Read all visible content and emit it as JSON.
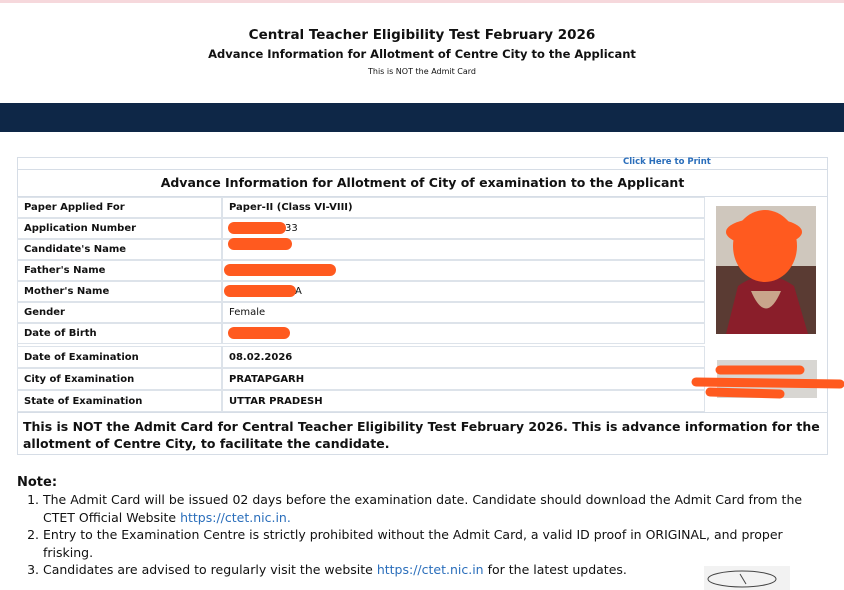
{
  "header": {
    "title": "Central Teacher Eligibility Test February 2026",
    "subtitle": "Advance Information for Allotment of Centre City to the Applicant",
    "note": "This is NOT the Admit Card"
  },
  "print_link": "Click Here to Print",
  "table": {
    "heading": "Advance Information for Allotment of City of examination to the Applicant",
    "rows": [
      [
        "Paper Applied For",
        "Paper-II (Class VI-VIII)"
      ],
      [
        "Application Number",
        "33"
      ],
      [
        "Candidate's Name"
      ],
      [
        "Father's Name"
      ],
      [
        "Mother's Name",
        "A"
      ],
      [
        "Gender",
        "Female"
      ],
      [
        "Date of Birth"
      ]
    ],
    "exam_rows": [
      [
        "Date of Examination",
        "08.02.2026"
      ],
      [
        "City of Examination",
        "PRATAPGARH"
      ],
      [
        "State of Examination",
        "UTTAR PRADESH"
      ]
    ],
    "notice": "This is NOT the Admit Card for Central Teacher Eligibility Test February 2026. This is advance information for the allotment of Centre City, to facilitate the candidate."
  },
  "notes": {
    "heading": "Note:",
    "items": [
      {
        "text": "The Admit Card will be issued 02 days before the examination date. Candidate should download the Admit Card from the CTET Official Website ",
        "link": "https://ctet.nic.in."
      },
      {
        "text": "Entry to the Examination Centre is strictly prohibited without the Admit Card, a valid ID proof in ORIGINAL, and proper frisking."
      },
      {
        "text": "Candidates are advised to regularly visit the website ",
        "link": "https://ctet.nic.in",
        "after": " for the latest updates."
      }
    ]
  }
}
